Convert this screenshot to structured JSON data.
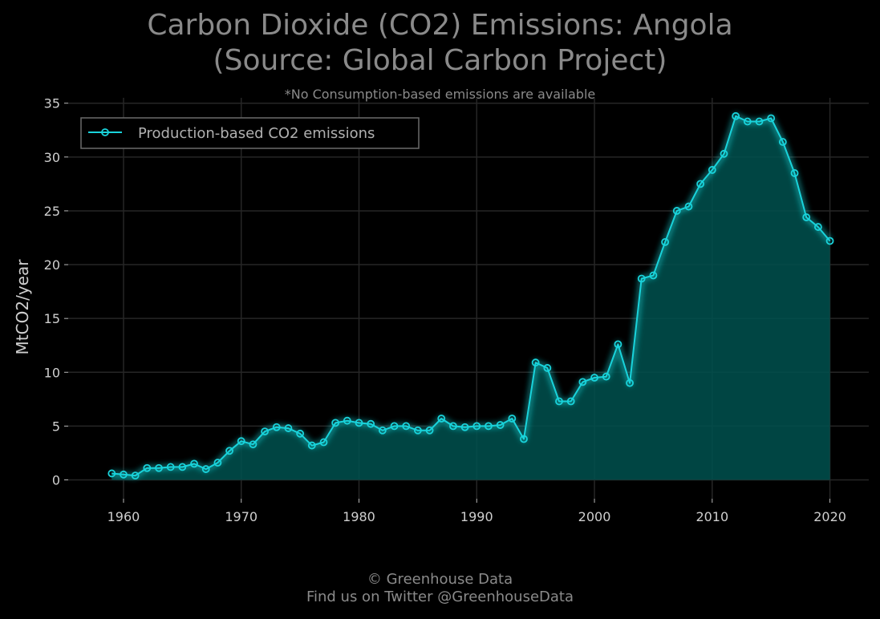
{
  "title_line1": "Carbon Dioxide (CO2) Emissions: Angola",
  "title_line2": "(Source: Global Carbon Project)",
  "subtitle": "*No Consumption-based emissions are available",
  "footer_line1": "© Greenhouse Data",
  "footer_line2": "Find us on Twitter @GreenhouseData",
  "colors": {
    "line": "#19d3db",
    "fill": "#00514f",
    "grid": "#262626",
    "background": "#000000"
  },
  "chart_data": {
    "type": "area",
    "ylabel": "MtCO2/year",
    "xlabel": "",
    "xlim": [
      1955.3,
      2023.3
    ],
    "ylim": [
      -1.75,
      35.5
    ],
    "xticks": [
      1960,
      1970,
      1980,
      1990,
      2000,
      2010,
      2020
    ],
    "yticks": [
      0,
      5,
      10,
      15,
      20,
      25,
      30,
      35
    ],
    "grid": true,
    "legend_position": "top-left",
    "series": [
      {
        "name": "Production-based CO2 emissions",
        "x": [
          1959,
          1960,
          1961,
          1962,
          1963,
          1964,
          1965,
          1966,
          1967,
          1968,
          1969,
          1970,
          1971,
          1972,
          1973,
          1974,
          1975,
          1976,
          1977,
          1978,
          1979,
          1980,
          1981,
          1982,
          1983,
          1984,
          1985,
          1986,
          1987,
          1988,
          1989,
          1990,
          1991,
          1992,
          1993,
          1994,
          1995,
          1996,
          1997,
          1998,
          1999,
          2000,
          2001,
          2002,
          2003,
          2004,
          2005,
          2006,
          2007,
          2008,
          2009,
          2010,
          2011,
          2012,
          2013,
          2014,
          2015,
          2016,
          2017,
          2018,
          2019,
          2020
        ],
        "y": [
          0.6,
          0.5,
          0.4,
          1.1,
          1.1,
          1.2,
          1.2,
          1.5,
          1.0,
          1.6,
          2.7,
          3.6,
          3.3,
          4.5,
          4.9,
          4.8,
          4.3,
          3.2,
          3.5,
          5.3,
          5.5,
          5.3,
          5.2,
          4.6,
          5.0,
          5.0,
          4.6,
          4.6,
          5.7,
          5.0,
          4.9,
          5.0,
          5.0,
          5.1,
          5.7,
          3.8,
          10.9,
          10.4,
          7.3,
          7.3,
          9.1,
          9.5,
          9.6,
          12.6,
          9.0,
          18.7,
          19.0,
          22.1,
          25.0,
          25.4,
          27.5,
          28.8,
          30.3,
          33.8,
          33.3,
          33.3,
          33.6,
          31.4,
          28.5,
          24.4,
          23.5,
          22.2
        ]
      }
    ]
  }
}
